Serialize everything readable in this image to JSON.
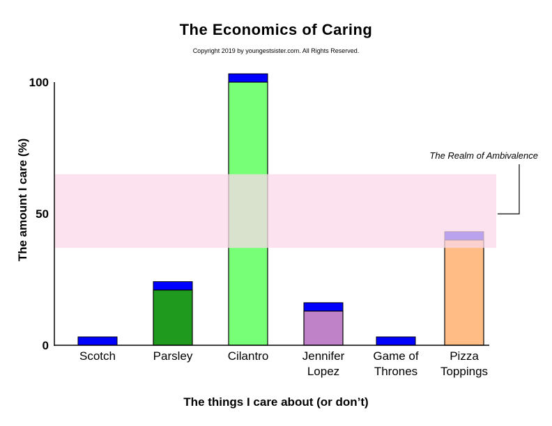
{
  "chart_data": {
    "type": "bar",
    "title": "The Economics of Caring",
    "subtitle": "Copyright 2019 by youngestsister.com. All Rights Reserved.",
    "xlabel": "The things I care about (or don’t)",
    "ylabel": "The amount I care (%)",
    "ylim": [
      0,
      100
    ],
    "yticks": [
      "0",
      "50",
      "100"
    ],
    "grid": false,
    "categories": [
      [
        "Scotch"
      ],
      [
        "Parsley"
      ],
      [
        "Cilantro"
      ],
      [
        "Jennifer",
        "Lopez"
      ],
      [
        "Game of",
        "Thrones"
      ],
      [
        "Pizza",
        "Toppings"
      ]
    ],
    "values": [
      0,
      21,
      100,
      13,
      0,
      40
    ],
    "colors": [
      "#0000ff",
      "#1f9a1f",
      "#77ff77",
      "#bf82c8",
      "#0000ff",
      "#ffbd85"
    ],
    "cap_color": "#0000ff",
    "band": {
      "label": "The Realm of Ambivalence",
      "from": 37,
      "to": 65,
      "color": "#fad8e8"
    }
  }
}
